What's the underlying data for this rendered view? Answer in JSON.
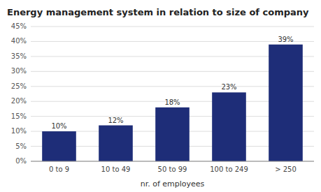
{
  "chart_data": {
    "type": "bar",
    "title": "Energy management system in relation to size of company",
    "categories": [
      "0 to 9",
      "10 to 49",
      "50 to 99",
      "100 to 249",
      "> 250"
    ],
    "values": [
      10,
      12,
      18,
      23,
      39
    ],
    "value_labels": [
      "10%",
      "12%",
      "18%",
      "23%",
      "39%"
    ],
    "color": "#1e2d78",
    "xlabel": "nr. of employees",
    "ylim": [
      0,
      45
    ],
    "yticks": [
      {
        "value": 0,
        "label": "0%"
      },
      {
        "value": 5,
        "label": "5%"
      },
      {
        "value": 10,
        "label": "10%"
      },
      {
        "value": 15,
        "label": "15%"
      },
      {
        "value": 20,
        "label": "20%"
      },
      {
        "value": 25,
        "label": "25%"
      },
      {
        "value": 30,
        "label": "30%"
      },
      {
        "value": 35,
        "label": "35%"
      },
      {
        "value": 40,
        "label": "40%"
      },
      {
        "value": 45,
        "label": "45%"
      }
    ],
    "grid": true,
    "data_labels": true
  }
}
